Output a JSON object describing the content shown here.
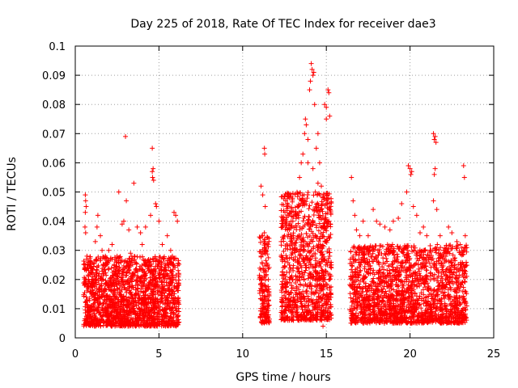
{
  "chart_data": {
    "type": "scatter",
    "title": "Day 225 of 2018, Rate Of TEC Index for receiver dae3",
    "xlabel": "GPS time / hours",
    "ylabel": "ROTI / TECUs",
    "xlim": [
      0,
      25
    ],
    "ylim": [
      0,
      0.1
    ],
    "x_ticks": [
      "0",
      "5",
      "10",
      "15",
      "20",
      "25"
    ],
    "y_ticks": [
      "0",
      "0.01",
      "0.02",
      "0.03",
      "0.04",
      "0.05",
      "0.06",
      "0.07",
      "0.08",
      "0.09",
      "0.1"
    ],
    "grid": true,
    "marker": "+",
    "color": "#ff0000",
    "series": [
      {
        "points": [
          [
            0.6,
            0.049
          ],
          [
            0.62,
            0.047
          ],
          [
            0.65,
            0.045
          ],
          [
            0.6,
            0.043
          ],
          [
            0.58,
            0.038
          ],
          [
            0.62,
            0.036
          ],
          [
            0.7,
            0.028
          ],
          [
            0.75,
            0.025
          ],
          [
            0.8,
            0.02
          ],
          [
            0.9,
            0.018
          ],
          [
            1.2,
            0.033
          ],
          [
            1.3,
            0.038
          ],
          [
            1.35,
            0.042
          ],
          [
            1.5,
            0.035
          ],
          [
            1.6,
            0.03
          ],
          [
            1.8,
            0.028
          ],
          [
            2.0,
            0.03
          ],
          [
            2.2,
            0.032
          ],
          [
            2.5,
            0.028
          ],
          [
            2.6,
            0.05
          ],
          [
            2.8,
            0.039
          ],
          [
            2.9,
            0.04
          ],
          [
            3.0,
            0.069
          ],
          [
            3.05,
            0.047
          ],
          [
            3.2,
            0.037
          ],
          [
            3.5,
            0.053
          ],
          [
            3.7,
            0.038
          ],
          [
            3.9,
            0.036
          ],
          [
            4.0,
            0.032
          ],
          [
            4.2,
            0.038
          ],
          [
            4.5,
            0.042
          ],
          [
            4.6,
            0.065
          ],
          [
            4.65,
            0.058
          ],
          [
            4.6,
            0.057
          ],
          [
            4.62,
            0.055
          ],
          [
            4.68,
            0.054
          ],
          [
            4.8,
            0.046
          ],
          [
            4.85,
            0.045
          ],
          [
            5.0,
            0.04
          ],
          [
            5.2,
            0.032
          ],
          [
            5.5,
            0.035
          ],
          [
            5.7,
            0.03
          ],
          [
            5.9,
            0.043
          ],
          [
            6.0,
            0.042
          ],
          [
            6.1,
            0.04
          ],
          [
            5.8,
            0.028
          ],
          [
            5.6,
            0.025
          ],
          [
            5.3,
            0.027
          ],
          [
            4.3,
            0.026
          ],
          [
            3.3,
            0.029
          ],
          [
            11.1,
            0.052
          ],
          [
            11.2,
            0.049
          ],
          [
            11.3,
            0.065
          ],
          [
            11.32,
            0.063
          ],
          [
            11.35,
            0.045
          ],
          [
            11.3,
            0.036
          ],
          [
            11.2,
            0.035
          ],
          [
            11.4,
            0.03
          ],
          [
            11.1,
            0.028
          ],
          [
            11.5,
            0.025
          ],
          [
            12.3,
            0.033
          ],
          [
            12.5,
            0.035
          ],
          [
            12.7,
            0.045
          ],
          [
            12.8,
            0.048
          ],
          [
            12.9,
            0.04
          ],
          [
            13.0,
            0.04
          ],
          [
            13.2,
            0.042
          ],
          [
            13.4,
            0.055
          ],
          [
            13.5,
            0.06
          ],
          [
            13.6,
            0.063
          ],
          [
            13.7,
            0.07
          ],
          [
            13.75,
            0.075
          ],
          [
            13.8,
            0.073
          ],
          [
            13.9,
            0.068
          ],
          [
            14.0,
            0.085
          ],
          [
            14.05,
            0.088
          ],
          [
            14.1,
            0.094
          ],
          [
            14.15,
            0.092
          ],
          [
            14.2,
            0.09
          ],
          [
            14.25,
            0.091
          ],
          [
            14.3,
            0.08
          ],
          [
            14.4,
            0.065
          ],
          [
            14.5,
            0.07
          ],
          [
            14.6,
            0.06
          ],
          [
            14.7,
            0.052
          ],
          [
            14.8,
            0.048
          ],
          [
            14.9,
            0.08
          ],
          [
            15.0,
            0.079
          ],
          [
            15.1,
            0.085
          ],
          [
            15.15,
            0.084
          ],
          [
            15.2,
            0.076
          ],
          [
            15.0,
            0.075
          ],
          [
            14.5,
            0.053
          ],
          [
            14.2,
            0.058
          ],
          [
            13.9,
            0.06
          ],
          [
            13.3,
            0.045
          ],
          [
            13.2,
            0.038
          ],
          [
            15.2,
            0.028
          ],
          [
            15.3,
            0.025
          ],
          [
            14.8,
            0.004
          ],
          [
            16.5,
            0.055
          ],
          [
            16.6,
            0.047
          ],
          [
            16.7,
            0.042
          ],
          [
            16.8,
            0.037
          ],
          [
            17.0,
            0.035
          ],
          [
            17.2,
            0.04
          ],
          [
            17.5,
            0.035
          ],
          [
            17.8,
            0.044
          ],
          [
            18.0,
            0.04
          ],
          [
            18.2,
            0.039
          ],
          [
            18.5,
            0.038
          ],
          [
            18.8,
            0.037
          ],
          [
            19.0,
            0.04
          ],
          [
            19.3,
            0.041
          ],
          [
            19.5,
            0.046
          ],
          [
            19.8,
            0.05
          ],
          [
            19.9,
            0.059
          ],
          [
            20.0,
            0.058
          ],
          [
            20.05,
            0.056
          ],
          [
            20.1,
            0.057
          ],
          [
            20.2,
            0.045
          ],
          [
            20.4,
            0.042
          ],
          [
            20.6,
            0.036
          ],
          [
            20.8,
            0.038
          ],
          [
            21.0,
            0.035
          ],
          [
            21.2,
            0.03
          ],
          [
            21.4,
            0.07
          ],
          [
            21.45,
            0.068
          ],
          [
            21.5,
            0.069
          ],
          [
            21.55,
            0.067
          ],
          [
            21.5,
            0.058
          ],
          [
            21.45,
            0.056
          ],
          [
            21.4,
            0.047
          ],
          [
            21.6,
            0.044
          ],
          [
            21.8,
            0.035
          ],
          [
            22.0,
            0.03
          ],
          [
            22.3,
            0.038
          ],
          [
            22.5,
            0.036
          ],
          [
            22.8,
            0.033
          ],
          [
            23.0,
            0.032
          ],
          [
            23.2,
            0.059
          ],
          [
            23.25,
            0.055
          ],
          [
            23.3,
            0.035
          ],
          [
            23.2,
            0.03
          ],
          [
            22.0,
            0.028
          ],
          [
            21.0,
            0.026
          ],
          [
            19.0,
            0.03
          ],
          [
            17.5,
            0.029
          ],
          [
            16.9,
            0.031
          ],
          [
            16.6,
            0.027
          ]
        ]
      }
    ],
    "clusters": [
      {
        "x_range": [
          0.5,
          6.2
        ],
        "y_base": [
          0.004,
          0.028
        ],
        "count": 1700
      },
      {
        "x_range": [
          11.0,
          11.6
        ],
        "y_base": [
          0.005,
          0.035
        ],
        "count": 180
      },
      {
        "x_range": [
          12.3,
          15.3
        ],
        "y_base": [
          0.006,
          0.05
        ],
        "count": 1000
      },
      {
        "x_range": [
          16.4,
          23.4
        ],
        "y_base": [
          0.005,
          0.032
        ],
        "count": 1800
      }
    ]
  }
}
